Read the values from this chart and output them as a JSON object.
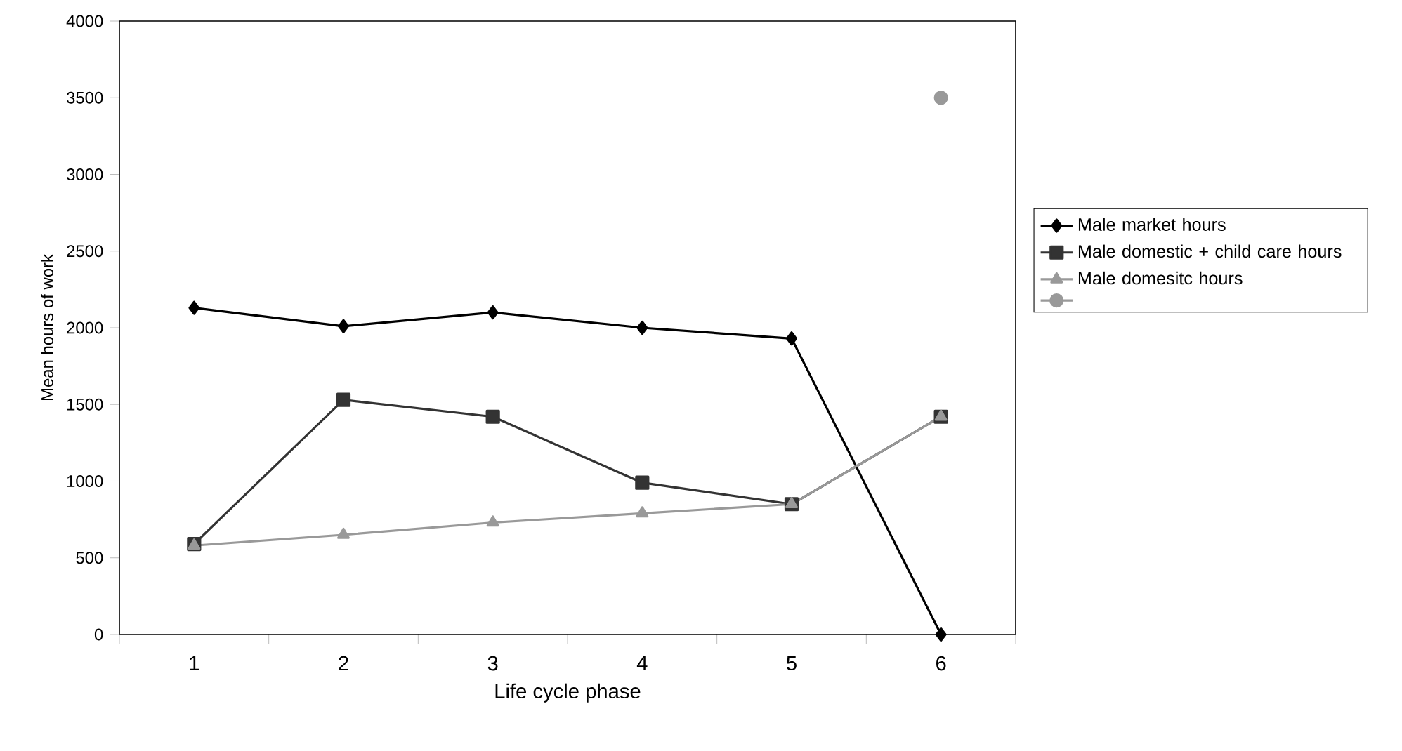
{
  "chart_data": {
    "type": "line",
    "xlabel": "Life cycle phase",
    "ylabel": "Mean hours of work",
    "categories": [
      "1",
      "2",
      "3",
      "4",
      "5",
      "6"
    ],
    "series": [
      {
        "name": "Male market hours",
        "color": "#000000",
        "marker": "diamond",
        "values": [
          2130,
          2010,
          2100,
          2000,
          1930,
          0
        ]
      },
      {
        "name": "Male domestic + child care hours",
        "color": "#333333",
        "marker": "square",
        "values": [
          590,
          1530,
          1420,
          990,
          850,
          1420
        ]
      },
      {
        "name": "Male domesitc hours",
        "color": "#999999",
        "marker": "triangle",
        "values": [
          580,
          650,
          730,
          790,
          850,
          1420
        ]
      },
      {
        "color": "#999999",
        "marker": "circle",
        "values": [
          null,
          null,
          null,
          null,
          null,
          3500
        ]
      }
    ],
    "ylim": [
      0,
      4000
    ],
    "yticks": [
      0,
      500,
      1000,
      1500,
      2000,
      2500,
      3000,
      3500,
      4000
    ],
    "grid": false,
    "legend": "right",
    "line_style": "solid"
  }
}
